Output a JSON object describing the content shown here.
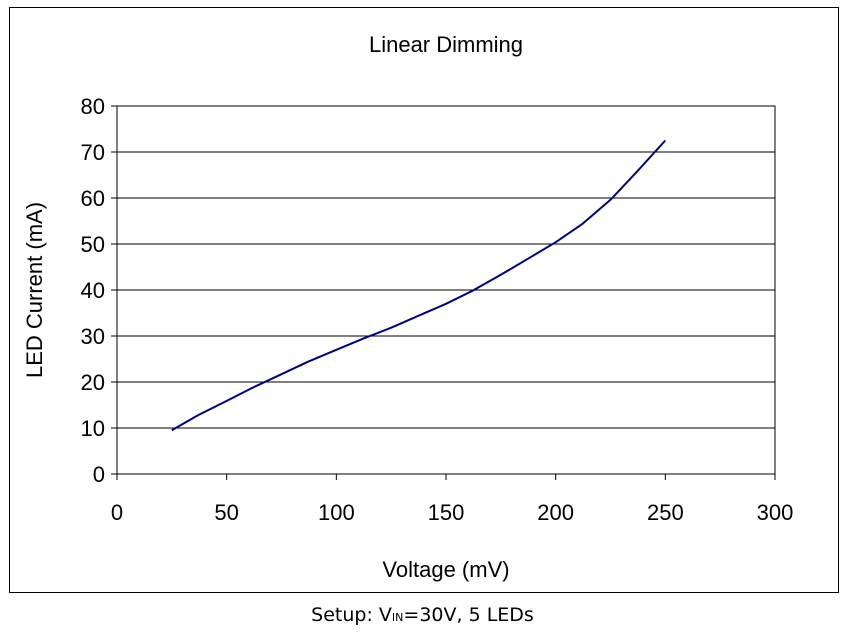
{
  "chart_data": {
    "type": "line",
    "title": "Linear Dimming",
    "xlabel": "Voltage (mV)",
    "ylabel": "LED Current (mA)",
    "xlim": [
      0,
      300
    ],
    "ylim": [
      0,
      80
    ],
    "xticks": [
      0,
      50,
      100,
      150,
      200,
      250,
      300
    ],
    "yticks": [
      0,
      10,
      20,
      30,
      40,
      50,
      60,
      70,
      80
    ],
    "grid": "horizontal",
    "legend": "none",
    "line_color": "#000080",
    "series": [
      {
        "x": [
          25,
          37,
          50,
          62,
          75,
          87,
          100,
          112,
          125,
          137,
          150,
          162,
          175,
          187,
          200,
          212,
          225,
          237,
          250
        ],
        "values": [
          9.5,
          12.8,
          15.9,
          18.8,
          21.7,
          24.4,
          27.0,
          29.4,
          31.8,
          34.3,
          37.0,
          39.8,
          43.3,
          46.7,
          50.4,
          54.3,
          59.6,
          65.7,
          72.5
        ]
      }
    ]
  },
  "caption": {
    "prefix": "Setup: V",
    "subscript": "IN",
    "suffix": "=30V, 5 LEDs"
  }
}
